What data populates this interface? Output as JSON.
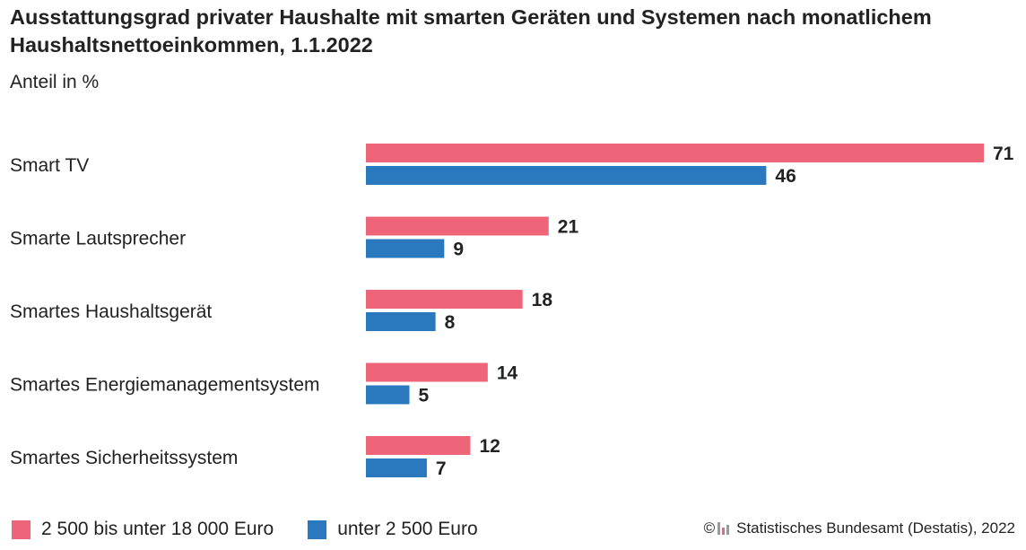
{
  "title": "Ausstattungsgrad privater Haushalte mit smarten Geräten und Systemen nach monatlichem Haushaltsnettoeinkommen, 1.1.2022",
  "subtitle": "Anteil in %",
  "source": {
    "copyright_symbol": "©",
    "text": "Statistisches Bundesamt (Destatis), 2022",
    "logo_icon": "destatis-logo-icon"
  },
  "colors": {
    "high_income": "#ee6479",
    "low_income": "#2a78bd",
    "text": "#222222"
  },
  "chart_data": {
    "type": "bar",
    "orientation": "horizontal",
    "title": "Ausstattungsgrad privater Haushalte mit smarten Geräten und Systemen nach monatlichem Haushaltsnettoeinkommen, 1.1.2022",
    "ylabel": "Anteil in %",
    "categories": [
      "Smart TV",
      "Smarte Lautsprecher",
      "Smartes Haushaltsgerät",
      "Smartes Energiemanagementsystem",
      "Smartes Sicherheitssystem"
    ],
    "series": [
      {
        "name": "2 500 bis unter 18 000 Euro",
        "color": "#ee6479",
        "values": [
          71,
          21,
          18,
          14,
          12
        ]
      },
      {
        "name": "unter 2 500 Euro",
        "color": "#2a78bd",
        "values": [
          46,
          9,
          8,
          5,
          7
        ]
      }
    ],
    "xlim": [
      0,
      71
    ],
    "legend_position": "bottom-left",
    "grid": false
  }
}
